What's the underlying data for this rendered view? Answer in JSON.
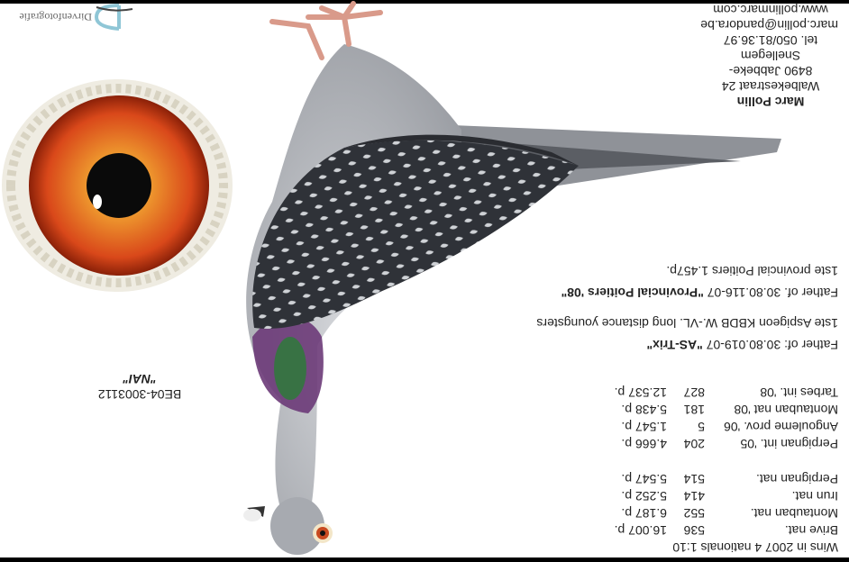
{
  "results": {
    "heading": "Wins in 2007  4 nationals 1:10",
    "group1": [
      {
        "race": "Brive nat.",
        "place": "536",
        "birds": "16.007 p."
      },
      {
        "race": "Montauban nat.",
        "place": "552",
        "birds": "6.187 p."
      },
      {
        "race": "Irun nat.",
        "place": "414",
        "birds": "5.252 p."
      },
      {
        "race": "Perpignan nat.",
        "place": "514",
        "birds": "5.547 p."
      }
    ],
    "group2": [
      {
        "race": "Perpignan int. '05",
        "place": "204",
        "birds": "4.666 p."
      },
      {
        "race": "Angouleme prov. '06",
        "place": "5",
        "birds": "1.547 p."
      },
      {
        "race": "Montauban nat '08",
        "place": "181",
        "birds": "5.438 p."
      },
      {
        "race": "Tarbes int. '08",
        "place": "827",
        "birds": "12.537 p."
      }
    ]
  },
  "offspring": {
    "line1_prefix": "Father of: 30.80.019-07 ",
    "line1_name": "\"AS-Trix\"",
    "line2": "1ste Aspigeon KBDB W.-VL.  long distance youngsters",
    "line3_prefix": "Father of. 30.80.116-07 ",
    "line3_name": "\"Provincial Poitiers '08\"",
    "line4": "1ste provincial Poitiers 1.457p."
  },
  "pigeon": {
    "ring": "BE04-3003112",
    "name": "\"NAI\""
  },
  "contact": {
    "name": "Marc Pollin",
    "street": "Walbekestraat 24",
    "city": "8490 Jabbeke-Snellegem",
    "tel": "tel. 050/81.36.97",
    "email": "marc.pollin@pandora.be",
    "web": "www.pollinmarc.com"
  },
  "logo": {
    "text": "Dirvenfotografie"
  },
  "colors": {
    "iris": "#d9481a",
    "plumage": "#b9bcc2",
    "wing": "#3a3d44",
    "neck_purple": "#6b3a78",
    "neck_green": "#2e7a3a"
  }
}
